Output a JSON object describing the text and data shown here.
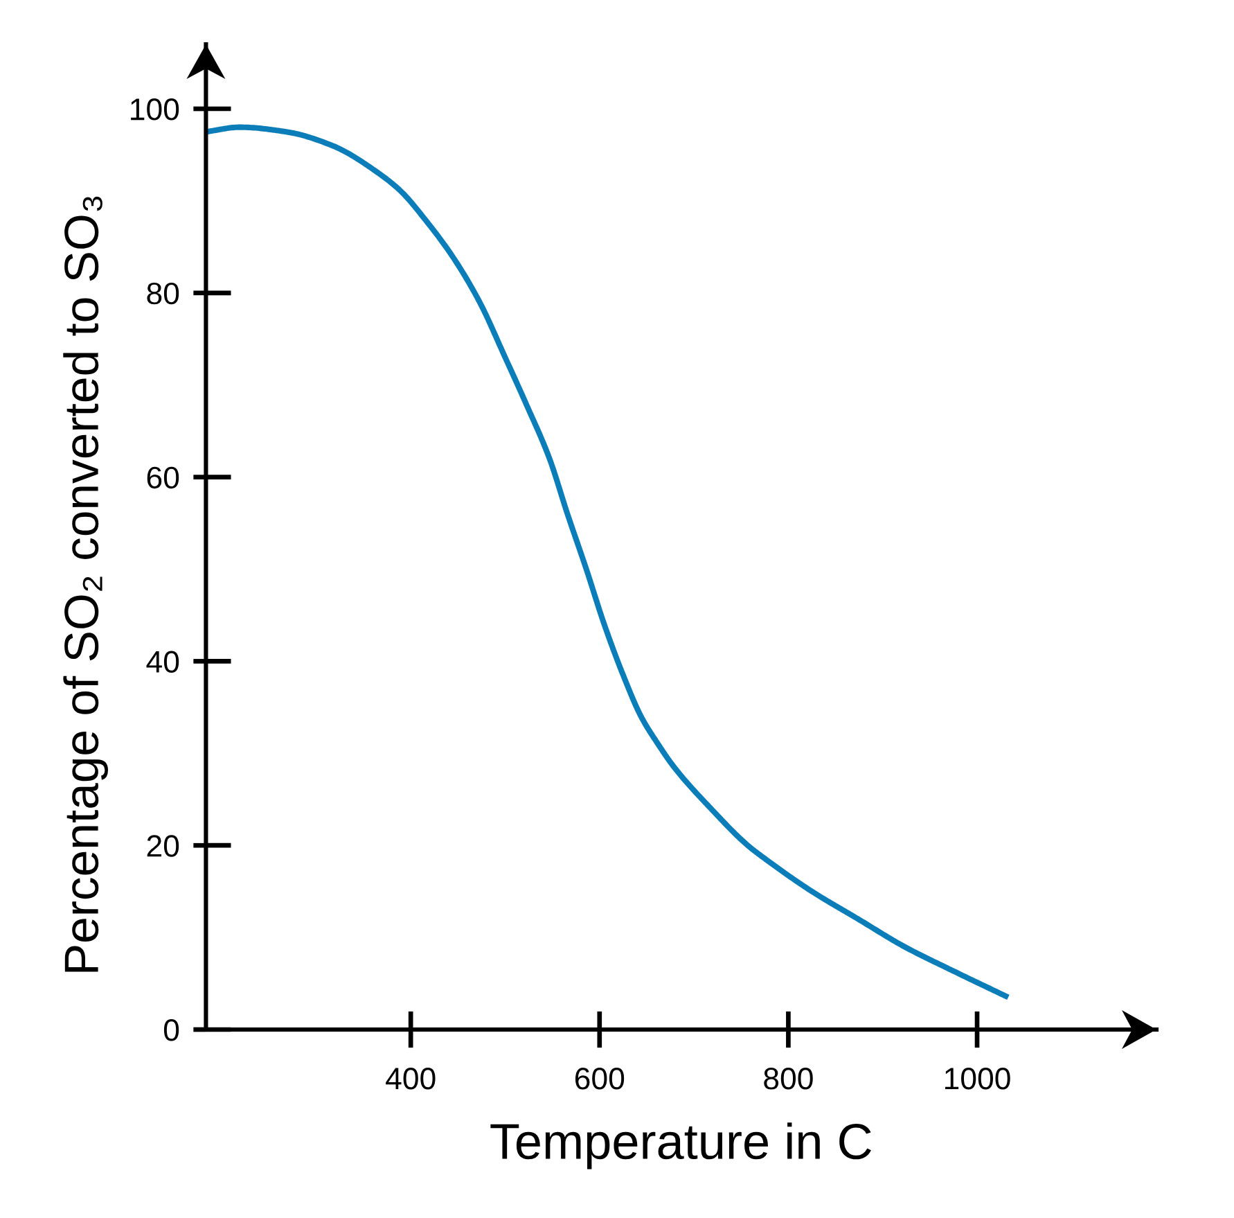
{
  "chart_data": {
    "type": "line",
    "xlabel": "Temperature in C",
    "ylabel": "Percentage of SO₂ converted to SO₃",
    "x": [
      183,
      219,
      268,
      317,
      366,
      390,
      415,
      444,
      473,
      500,
      522,
      547,
      566,
      586,
      605,
      625,
      644,
      662,
      679,
      718,
      757,
      776,
      825,
      874,
      923,
      972,
      1033
    ],
    "series": [
      {
        "color": "#0b7db9",
        "values": [
          97.5,
          98,
          97.5,
          96,
          93,
          91,
          88,
          84,
          79,
          73,
          68,
          62,
          56,
          50,
          44,
          38.5,
          34,
          31,
          28.5,
          24,
          20,
          18.5,
          15,
          12,
          9,
          6.5,
          3.5
        ]
      }
    ],
    "xlim": [
      183,
      1190
    ],
    "ylim": [
      0,
      107
    ],
    "xticks": [
      400,
      600,
      800,
      1000
    ],
    "yticks": [
      0,
      20,
      40,
      60,
      80,
      100
    ],
    "grid": false,
    "marker": "none",
    "line_style": "solid"
  }
}
